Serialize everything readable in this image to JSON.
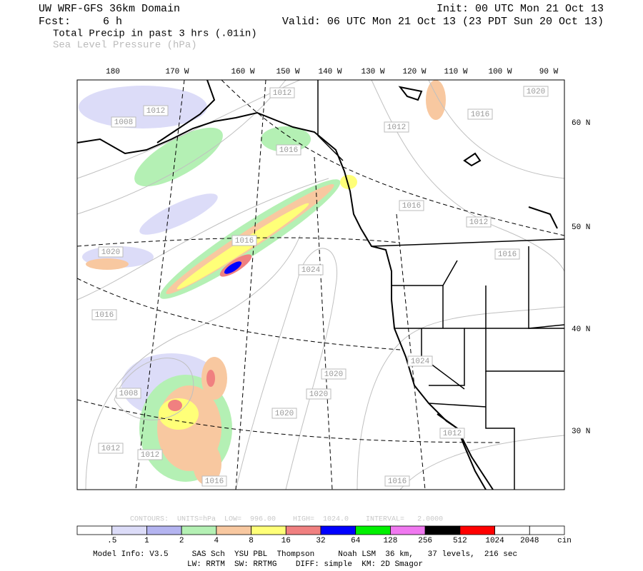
{
  "header": {
    "title": "UW WRF-GFS 36km Domain",
    "init": "Init: 00 UTC Mon 21 Oct 13",
    "forecast": "Fcst:     6 h",
    "valid": "Valid: 06 UTC Mon 21 Oct 13 (23 PDT Sun 20 Oct 13)",
    "field": "Total Precip in past 3 hrs (.01in)",
    "overlay": "Sea Level Pressure (hPa)"
  },
  "map": {
    "longitude_labels": [
      "180",
      "170 W",
      "160 W",
      "150 W",
      "140 W",
      "130 W",
      "120 W",
      "110 W",
      "100 W",
      "90 W"
    ],
    "latitude_labels": [
      "60 N",
      "50 N",
      "40 N",
      "30 N"
    ],
    "pressure_labels": [
      "1012",
      "1020",
      "1016",
      "1012",
      "1008",
      "1012",
      "1016",
      "1016",
      "1012",
      "1016",
      "1020",
      "1024",
      "1016",
      "1016",
      "1020",
      "1020",
      "1020",
      "1008",
      "1012",
      "1012",
      "1016",
      "1016",
      "1012",
      "1024"
    ]
  },
  "contour_info": {
    "text": "CONTOURS:  UNITS=hPa  LOW=  996.00    HIGH=  1024.0    INTERVAL=   2.0000"
  },
  "colorbar": {
    "labels": [
      ".5",
      "1",
      "2",
      "4",
      "8",
      "16",
      "32",
      "64",
      "128",
      "256",
      "512",
      "1024",
      "2048"
    ],
    "unit": "cin",
    "colors": [
      "#ffffff",
      "#dcdcf8",
      "#b4b4f0",
      "#b4f0b4",
      "#f8c8a0",
      "#ffff78",
      "#f08080",
      "#0000ff",
      "#00f000",
      "#f078f0",
      "#000000",
      "#ff0000",
      "#ffffff",
      "#ffffff"
    ]
  },
  "footer": {
    "line1": "Model Info: V3.5     SAS Sch  YSU PBL  Thompson     Noah LSM  36 km,   37 levels,  216 sec",
    "line2": "LW: RRTM  SW: RRTMG    DIFF: simple  KM: 2D Smagor"
  }
}
